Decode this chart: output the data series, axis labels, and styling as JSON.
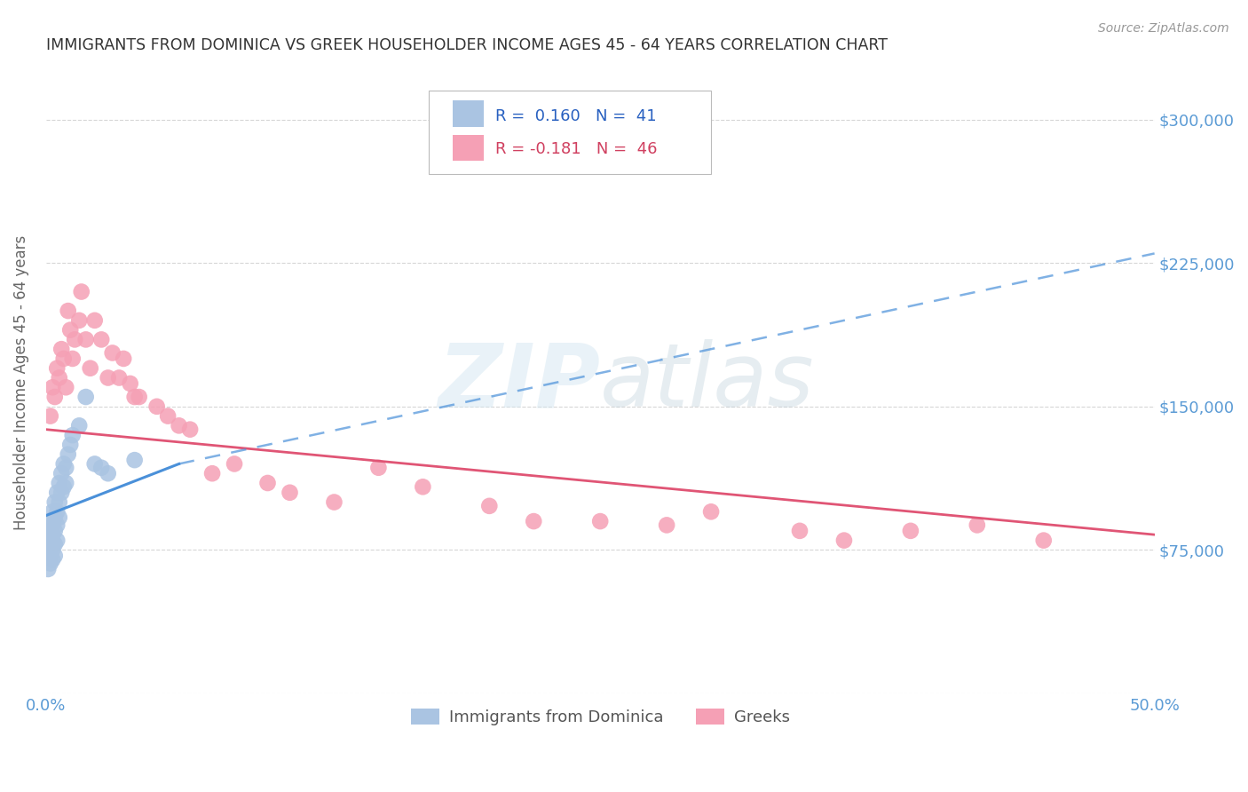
{
  "title": "IMMIGRANTS FROM DOMINICA VS GREEK HOUSEHOLDER INCOME AGES 45 - 64 YEARS CORRELATION CHART",
  "source": "Source: ZipAtlas.com",
  "ylabel": "Householder Income Ages 45 - 64 years",
  "xlim": [
    0,
    0.5
  ],
  "ylim": [
    0,
    325000
  ],
  "dominica_color": "#aac4e2",
  "greek_color": "#f5a0b5",
  "dominica_line_color": "#4a90d9",
  "greek_line_color": "#e05575",
  "background_color": "#ffffff",
  "grid_color": "#cccccc",
  "title_color": "#333333",
  "axis_label_color": "#666666",
  "ytick_color": "#5b9bd5",
  "xtick_color": "#5b9bd5",
  "legend_R_color_blue": "#2860c0",
  "legend_R_color_pink": "#d04060",
  "dominica_x": [
    0.001,
    0.001,
    0.001,
    0.002,
    0.002,
    0.002,
    0.002,
    0.002,
    0.003,
    0.003,
    0.003,
    0.003,
    0.003,
    0.003,
    0.004,
    0.004,
    0.004,
    0.004,
    0.004,
    0.005,
    0.005,
    0.005,
    0.005,
    0.006,
    0.006,
    0.006,
    0.007,
    0.007,
    0.008,
    0.008,
    0.009,
    0.009,
    0.01,
    0.011,
    0.012,
    0.015,
    0.018,
    0.022,
    0.025,
    0.028,
    0.04
  ],
  "dominica_y": [
    85000,
    75000,
    65000,
    90000,
    82000,
    78000,
    72000,
    68000,
    95000,
    88000,
    83000,
    79000,
    75000,
    70000,
    100000,
    92000,
    85000,
    78000,
    72000,
    105000,
    95000,
    88000,
    80000,
    110000,
    100000,
    92000,
    115000,
    105000,
    120000,
    108000,
    118000,
    110000,
    125000,
    130000,
    135000,
    140000,
    155000,
    120000,
    118000,
    115000,
    122000
  ],
  "greek_x": [
    0.002,
    0.003,
    0.004,
    0.005,
    0.006,
    0.007,
    0.008,
    0.009,
    0.01,
    0.011,
    0.012,
    0.013,
    0.015,
    0.016,
    0.018,
    0.02,
    0.022,
    0.025,
    0.028,
    0.03,
    0.033,
    0.035,
    0.038,
    0.04,
    0.042,
    0.05,
    0.055,
    0.06,
    0.065,
    0.075,
    0.085,
    0.1,
    0.11,
    0.13,
    0.15,
    0.17,
    0.2,
    0.22,
    0.25,
    0.28,
    0.3,
    0.34,
    0.36,
    0.39,
    0.42,
    0.45
  ],
  "greek_y": [
    145000,
    160000,
    155000,
    170000,
    165000,
    180000,
    175000,
    160000,
    200000,
    190000,
    175000,
    185000,
    195000,
    210000,
    185000,
    170000,
    195000,
    185000,
    165000,
    178000,
    165000,
    175000,
    162000,
    155000,
    155000,
    150000,
    145000,
    140000,
    138000,
    115000,
    120000,
    110000,
    105000,
    100000,
    118000,
    108000,
    98000,
    90000,
    90000,
    88000,
    95000,
    85000,
    80000,
    85000,
    88000,
    80000
  ],
  "dominica_trend_x0": 0.0,
  "dominica_trend_y0": 93000,
  "dominica_trend_x1": 0.06,
  "dominica_trend_y1": 120000,
  "dominica_trend_x2": 0.5,
  "dominica_trend_y2": 230000,
  "greek_trend_x0": 0.0,
  "greek_trend_y0": 138000,
  "greek_trend_x1": 0.5,
  "greek_trend_y1": 83000
}
